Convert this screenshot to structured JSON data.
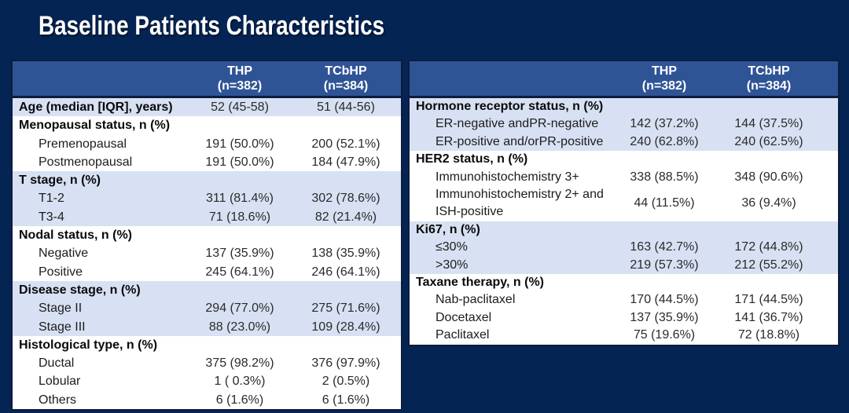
{
  "slide": {
    "title": "Baseline Patients Characteristics"
  },
  "colors": {
    "background": "#042453",
    "header_blue": "#2F5496",
    "row_band_blue": "#D7E1F3",
    "row_band_white": "#FFFFFF",
    "border_dark": "#0D1B3E",
    "title_text": "#FFFFFF",
    "body_text": "#1C1C1C"
  },
  "tables": [
    {
      "name": "baseline-table-left",
      "columns": [
        {
          "label": "",
          "sub": ""
        },
        {
          "label": "THP",
          "sub": "(n=382)"
        },
        {
          "label": "TCbHP",
          "sub": "(n=384)"
        }
      ],
      "rows": [
        {
          "label": "Age (median [IQR], years)",
          "thp": "52 (45-58)",
          "tcbhp": "51 (44-56)",
          "bold": true,
          "indent": false,
          "band": "blue"
        },
        {
          "label": "Menopausal status, n (%)",
          "thp": "",
          "tcbhp": "",
          "bold": true,
          "indent": false,
          "band": "white"
        },
        {
          "label": "Premenopausal",
          "thp": "191 (50.0%)",
          "tcbhp": "200 (52.1%)",
          "bold": false,
          "indent": true,
          "band": "white"
        },
        {
          "label": "Postmenopausal",
          "thp": "191 (50.0%)",
          "tcbhp": "184 (47.9%)",
          "bold": false,
          "indent": true,
          "band": "white"
        },
        {
          "label": "T stage, n (%)",
          "thp": "",
          "tcbhp": "",
          "bold": true,
          "indent": false,
          "band": "blue"
        },
        {
          "label": "T1-2",
          "thp": "311 (81.4%)",
          "tcbhp": "302 (78.6%)",
          "bold": false,
          "indent": true,
          "band": "blue"
        },
        {
          "label": "T3-4",
          "thp": "71 (18.6%)",
          "tcbhp": "82 (21.4%)",
          "bold": false,
          "indent": true,
          "band": "blue"
        },
        {
          "label": "Nodal status, n (%)",
          "thp": "",
          "tcbhp": "",
          "bold": true,
          "indent": false,
          "band": "white"
        },
        {
          "label": "Negative",
          "thp": "137 (35.9%)",
          "tcbhp": "138 (35.9%)",
          "bold": false,
          "indent": true,
          "band": "white"
        },
        {
          "label": "Positive",
          "thp": "245 (64.1%)",
          "tcbhp": "246 (64.1%)",
          "bold": false,
          "indent": true,
          "band": "white"
        },
        {
          "label": "Disease stage, n (%)",
          "thp": "",
          "tcbhp": "",
          "bold": true,
          "indent": false,
          "band": "blue"
        },
        {
          "label": "Stage II",
          "thp": "294 (77.0%)",
          "tcbhp": "275 (71.6%)",
          "bold": false,
          "indent": true,
          "band": "blue"
        },
        {
          "label": "Stage III",
          "thp": "88 (23.0%)",
          "tcbhp": "109 (28.4%)",
          "bold": false,
          "indent": true,
          "band": "blue"
        },
        {
          "label": "Histological type, n (%)",
          "thp": "",
          "tcbhp": "",
          "bold": true,
          "indent": false,
          "band": "white"
        },
        {
          "label": "Ductal",
          "thp": "375 (98.2%)",
          "tcbhp": "376 (97.9%)",
          "bold": false,
          "indent": true,
          "band": "white"
        },
        {
          "label": "Lobular",
          "thp": "1 ( 0.3%)",
          "tcbhp": "2 (0.5%)",
          "bold": false,
          "indent": true,
          "band": "white"
        },
        {
          "label": "Others",
          "thp": "6 (1.6%)",
          "tcbhp": "6 (1.6%)",
          "bold": false,
          "indent": true,
          "band": "white"
        }
      ]
    },
    {
      "name": "baseline-table-right",
      "columns": [
        {
          "label": "",
          "sub": ""
        },
        {
          "label": "THP",
          "sub": "(n=382)"
        },
        {
          "label": "TCbHP",
          "sub": "(n=384)"
        }
      ],
      "rows": [
        {
          "label": "Hormone receptor status, n (%)",
          "thp": "",
          "tcbhp": "",
          "bold": true,
          "indent": false,
          "band": "blue"
        },
        {
          "label": "ER-negative andPR-negative",
          "thp": "142 (37.2%)",
          "tcbhp": "144 (37.5%)",
          "bold": false,
          "indent": true,
          "band": "blue"
        },
        {
          "label": "ER-positive and/orPR-positive",
          "thp": "240 (62.8%)",
          "tcbhp": "240 (62.5%)",
          "bold": false,
          "indent": true,
          "band": "blue"
        },
        {
          "label": "HER2 status, n (%)",
          "thp": "",
          "tcbhp": "",
          "bold": true,
          "indent": false,
          "band": "white"
        },
        {
          "label": "Immunohistochemistry 3+",
          "thp": "338 (88.5%)",
          "tcbhp": "348 (90.6%)",
          "bold": false,
          "indent": true,
          "band": "white"
        },
        {
          "label": "Immunohistochemistry 2+ and\nISH-positive",
          "thp": "44 (11.5%)",
          "tcbhp": "36 (9.4%)",
          "bold": false,
          "indent": true,
          "band": "white"
        },
        {
          "label": "Ki67, n (%)",
          "thp": "",
          "tcbhp": "",
          "bold": true,
          "indent": false,
          "band": "blue"
        },
        {
          "label": "≤30%",
          "thp": "163 (42.7%)",
          "tcbhp": "172 (44.8%)",
          "bold": false,
          "indent": true,
          "band": "blue"
        },
        {
          "label": ">30%",
          "thp": "219 (57.3%)",
          "tcbhp": "212 (55.2%)",
          "bold": false,
          "indent": true,
          "band": "blue"
        },
        {
          "label": "Taxane therapy, n (%)",
          "thp": "",
          "tcbhp": "",
          "bold": true,
          "indent": false,
          "band": "white"
        },
        {
          "label": "Nab-paclitaxel",
          "thp": "170 (44.5%)",
          "tcbhp": "171 (44.5%)",
          "bold": false,
          "indent": true,
          "band": "white"
        },
        {
          "label": "Docetaxel",
          "thp": "137 (35.9%)",
          "tcbhp": "141 (36.7%)",
          "bold": false,
          "indent": true,
          "band": "white"
        },
        {
          "label": "Paclitaxel",
          "thp": "75 (19.6%)",
          "tcbhp": "72 (18.8%)",
          "bold": false,
          "indent": true,
          "band": "white"
        }
      ]
    }
  ]
}
